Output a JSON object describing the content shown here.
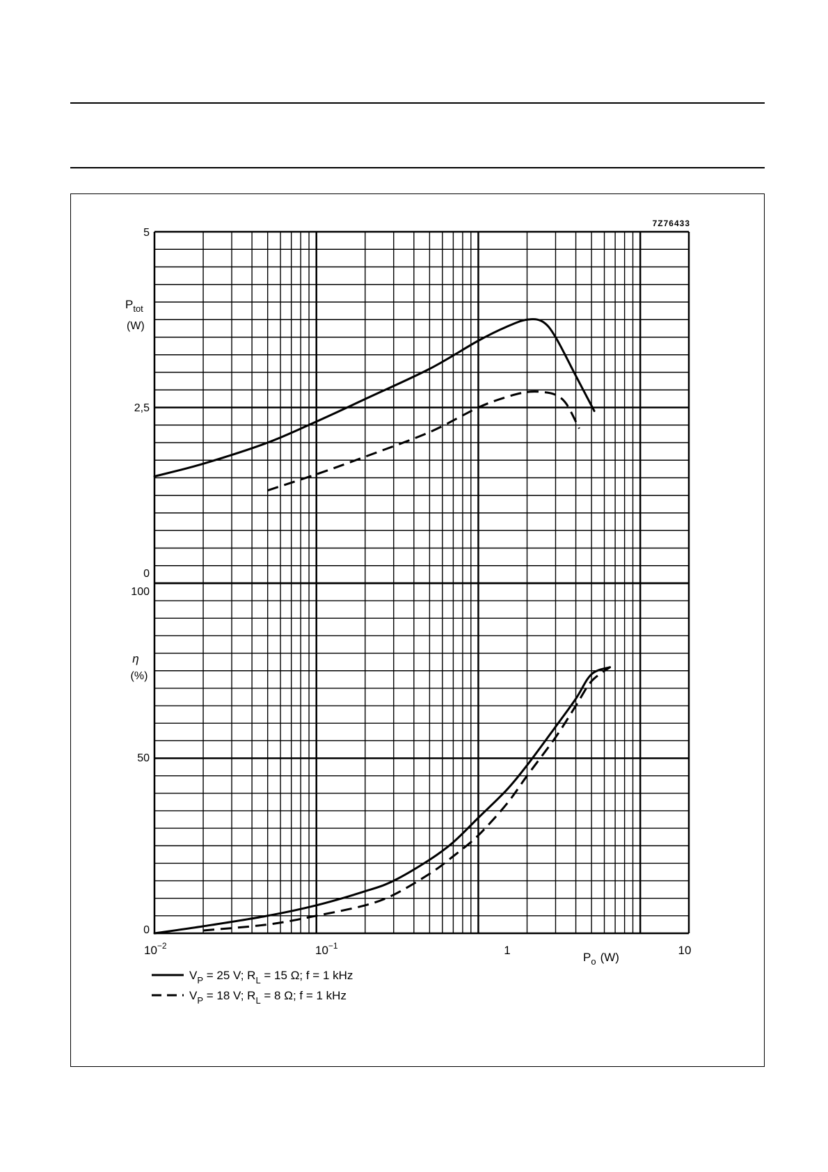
{
  "figure_code": "7Z76433",
  "chart_data": [
    {
      "type": "line",
      "y_label_main": "P",
      "y_label_sub": "tot",
      "y_unit": "(W)",
      "x_scale": "log",
      "xlim": [
        0.01,
        10
      ],
      "ylim": [
        0,
        5
      ],
      "y_ticks": [
        "0",
        "2,5",
        "5"
      ],
      "grid": true,
      "series": [
        {
          "legend_id": "s1",
          "style": "solid",
          "x": [
            0.01,
            0.02,
            0.05,
            0.1,
            0.2,
            0.5,
            1,
            1.5,
            2,
            2.5,
            3,
            4,
            5.2
          ],
          "y": [
            1.52,
            1.7,
            2.0,
            2.3,
            2.62,
            3.05,
            3.45,
            3.65,
            3.75,
            3.72,
            3.5,
            2.95,
            2.45
          ]
        },
        {
          "legend_id": "s2",
          "style": "dashed",
          "x": [
            0.05,
            0.1,
            0.2,
            0.5,
            1,
            1.5,
            2,
            2.5,
            3,
            3.5,
            4.2
          ],
          "y": [
            1.32,
            1.55,
            1.8,
            2.15,
            2.5,
            2.65,
            2.72,
            2.72,
            2.68,
            2.55,
            2.2
          ]
        }
      ]
    },
    {
      "type": "line",
      "y_label_main": "η",
      "y_unit": "(%)",
      "x_label_main": "P",
      "x_label_sub": "o",
      "x_unit": "(W)",
      "x_scale": "log",
      "xlim": [
        0.01,
        10
      ],
      "ylim": [
        0,
        100
      ],
      "y_ticks": [
        "0",
        "50",
        "100"
      ],
      "x_ticks": [
        "10",
        "10",
        "1",
        "10"
      ],
      "x_tick_exponents": [
        "−2",
        "−1",
        "",
        ""
      ],
      "grid": true,
      "series": [
        {
          "legend_id": "s1",
          "style": "solid",
          "x": [
            0.01,
            0.02,
            0.05,
            0.1,
            0.2,
            0.3,
            0.5,
            0.7,
            1,
            1.5,
            2,
            3,
            4,
            5,
            6.5
          ],
          "y": [
            0,
            2,
            5,
            8,
            12,
            15,
            21,
            26,
            33,
            41,
            48,
            59,
            67,
            74,
            76
          ]
        },
        {
          "legend_id": "s2",
          "style": "dashed",
          "x": [
            0.02,
            0.05,
            0.1,
            0.2,
            0.3,
            0.5,
            0.7,
            1,
            1.5,
            2,
            3,
            4,
            5,
            6.5
          ],
          "y": [
            0.8,
            2.5,
            5,
            8,
            11,
            17,
            22,
            28,
            37,
            45,
            56,
            65,
            72,
            76
          ]
        }
      ]
    }
  ],
  "legend": [
    {
      "id": "s1",
      "style": "solid",
      "a": "V",
      "a_sub": "P",
      "b": " = 25 V;  R",
      "b_sub": "L",
      "c": " = 15 Ω;  f = 1 kHz"
    },
    {
      "id": "s2",
      "style": "dashed",
      "a": "V",
      "a_sub": "P",
      "b": " = 18 V;  R",
      "b_sub": "L",
      "c": " =  8 Ω;  f = 1 kHz"
    }
  ]
}
